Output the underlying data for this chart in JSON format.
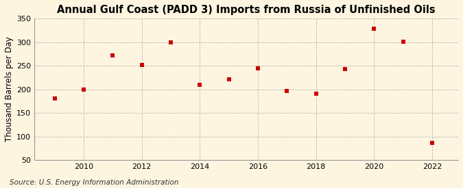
{
  "years": [
    2009,
    2010,
    2011,
    2012,
    2013,
    2014,
    2015,
    2016,
    2017,
    2018,
    2019,
    2020,
    2021,
    2022
  ],
  "values": [
    180,
    200,
    272,
    252,
    299,
    210,
    221,
    245,
    197,
    190,
    243,
    328,
    301,
    86
  ],
  "title": "Annual Gulf Coast (PADD 3) Imports from Russia of Unfinished Oils",
  "ylabel": "Thousand Barrels per Day",
  "source": "Source: U.S. Energy Information Administration",
  "marker_color": "#cc0000",
  "marker": "s",
  "marker_size": 4,
  "background_color": "#fdf5e0",
  "grid_color": "#b0b0b0",
  "xlim": [
    2008.3,
    2022.9
  ],
  "ylim": [
    50,
    350
  ],
  "yticks": [
    50,
    100,
    150,
    200,
    250,
    300,
    350
  ],
  "xticks": [
    2010,
    2012,
    2014,
    2016,
    2018,
    2020,
    2022
  ],
  "title_fontsize": 10.5,
  "ylabel_fontsize": 8.5,
  "source_fontsize": 7.5,
  "tick_fontsize": 8
}
